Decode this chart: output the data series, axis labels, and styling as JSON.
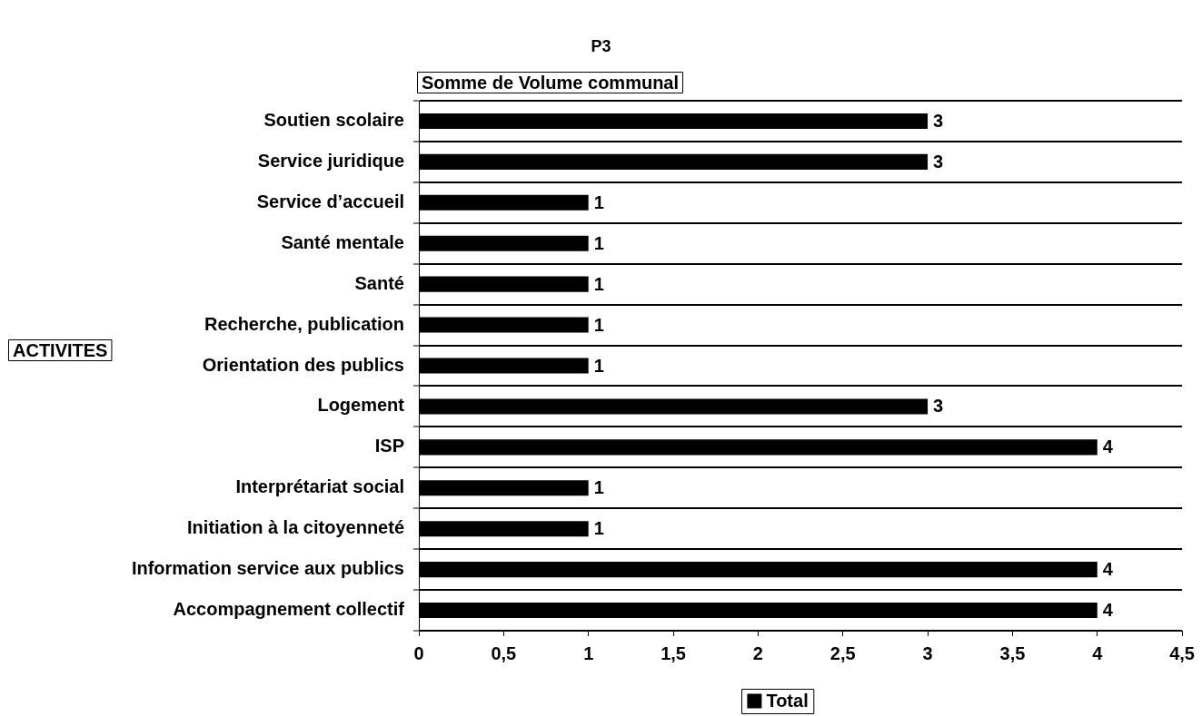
{
  "chart_data": {
    "type": "bar",
    "orientation": "horizontal",
    "title": "P3",
    "subtitle": "Somme de Volume communal",
    "ylabel": "ACTIVITES",
    "categories": [
      "Soutien scolaire",
      "Service juridique",
      "Service d’accueil",
      "Santé mentale",
      "Santé",
      "Recherche, publication",
      "Orientation des publics",
      "Logement",
      "ISP",
      "Interprétariat social",
      "Initiation à la citoyenneté",
      "Information service aux publics",
      "Accompagnement collectif"
    ],
    "series": [
      {
        "name": "Total",
        "color": "#000000",
        "values": [
          3,
          3,
          1,
          1,
          1,
          1,
          1,
          3,
          4,
          1,
          1,
          4,
          4
        ]
      }
    ],
    "xlim": [
      0,
      4.5
    ],
    "xticks": [
      0,
      {
        "value": 0.5,
        "label": "0,5"
      },
      1,
      {
        "value": 1.5,
        "label": "1,5"
      },
      2,
      {
        "value": 2.5,
        "label": "2,5"
      },
      3,
      {
        "value": 3.5,
        "label": "3,5"
      },
      4,
      {
        "value": 4.5,
        "label": "4,5"
      }
    ],
    "grid": "y",
    "legend": "bottom",
    "data_labels": true
  }
}
